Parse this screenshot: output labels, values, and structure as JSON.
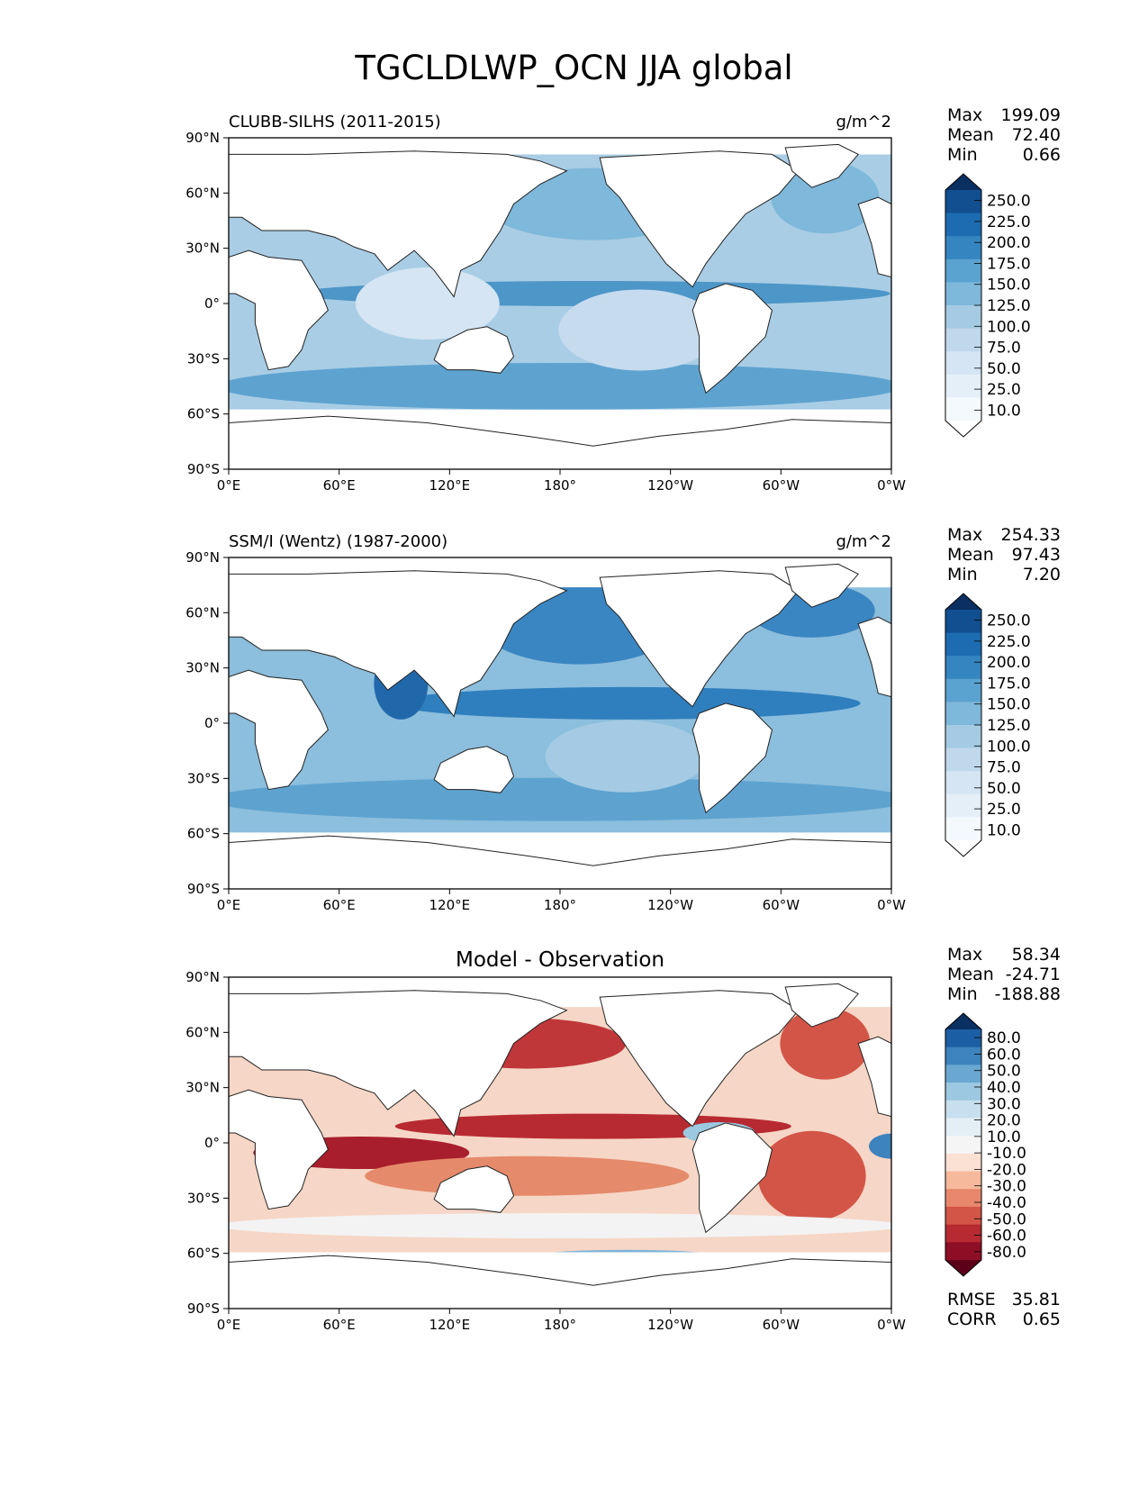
{
  "title": "TGCLDLWP_OCN JJA global",
  "axes": {
    "lat_ticks": [
      "90°N",
      "60°N",
      "30°N",
      "0°",
      "30°S",
      "60°S",
      "90°S"
    ],
    "lon_ticks": [
      "0°E",
      "60°E",
      "120°E",
      "180°",
      "120°W",
      "60°W",
      "0°W"
    ]
  },
  "panels": [
    {
      "left_title": "CLUBB-SILHS (2011-2015)",
      "center_title": "",
      "right_title": "g/m^2",
      "stats": [
        {
          "label": "Max",
          "value": "199.09"
        },
        {
          "label": "Mean",
          "value": "72.40"
        },
        {
          "label": "Min",
          "value": "0.66"
        }
      ],
      "colorbar": {
        "labels": [
          "250.0",
          "225.0",
          "200.0",
          "175.0",
          "150.0",
          "125.0",
          "100.0",
          "75.0",
          "50.0",
          "25.0",
          "10.0"
        ],
        "colors_top_to_bottom": [
          "#0a2f61",
          "#114f91",
          "#1d6cb1",
          "#3585c0",
          "#5aa2cf",
          "#7eb8da",
          "#a4cbe3",
          "#c0d8ec",
          "#d5e5f3",
          "#e5eff8",
          "#f4f9fe",
          "#ffffff"
        ]
      }
    },
    {
      "left_title": "SSM/I (Wentz) (1987-2000)",
      "center_title": "",
      "right_title": "g/m^2",
      "stats": [
        {
          "label": "Max",
          "value": "254.33"
        },
        {
          "label": "Mean",
          "value": "97.43"
        },
        {
          "label": "Min",
          "value": "7.20"
        }
      ],
      "colorbar": {
        "labels": [
          "250.0",
          "225.0",
          "200.0",
          "175.0",
          "150.0",
          "125.0",
          "100.0",
          "75.0",
          "50.0",
          "25.0",
          "10.0"
        ],
        "colors_top_to_bottom": [
          "#0a2f61",
          "#114f91",
          "#1d6cb1",
          "#3585c0",
          "#5aa2cf",
          "#7eb8da",
          "#a4cbe3",
          "#c0d8ec",
          "#d5e5f3",
          "#e5eff8",
          "#f4f9fe",
          "#ffffff"
        ]
      }
    },
    {
      "left_title": "",
      "center_title": "Model - Observation",
      "right_title": "",
      "stats": [
        {
          "label": "Max",
          "value": "58.34"
        },
        {
          "label": "Mean",
          "value": "-24.71"
        },
        {
          "label": "Min",
          "value": "-188.88"
        }
      ],
      "extra_stats": [
        {
          "label": "RMSE",
          "value": "35.81"
        },
        {
          "label": "CORR",
          "value": "0.65"
        }
      ],
      "colorbar": {
        "labels": [
          "80.0",
          "60.0",
          "50.0",
          "40.0",
          "30.0",
          "20.0",
          "10.0",
          "-10.0",
          "-20.0",
          "-30.0",
          "-40.0",
          "-50.0",
          "-60.0",
          "-80.0"
        ],
        "colors_top_to_bottom": [
          "#0a2f61",
          "#1c5ea4",
          "#3d83bd",
          "#6aa8d1",
          "#9dc8e1",
          "#c7dfee",
          "#e4eef5",
          "#f5f5f5",
          "#fbe1d4",
          "#f6b99b",
          "#e8876b",
          "#d35547",
          "#b82a32",
          "#8e0e26",
          "#5c0019"
        ]
      }
    }
  ]
}
